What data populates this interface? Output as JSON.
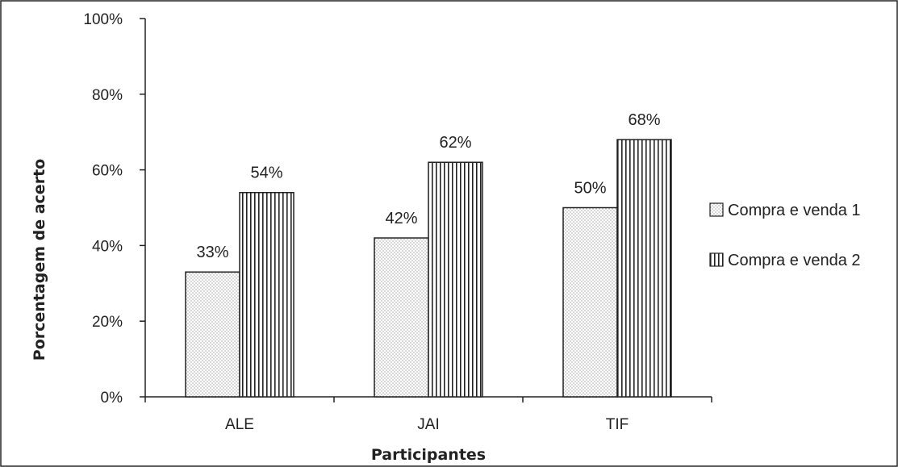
{
  "chart_data": {
    "type": "bar",
    "categories": [
      "ALE",
      "JAI",
      "TIF"
    ],
    "series": [
      {
        "name": "Compra e venda 1",
        "values": [
          33,
          42,
          50
        ],
        "pattern": "dots"
      },
      {
        "name": "Compra e venda 2",
        "values": [
          54,
          62,
          68
        ],
        "pattern": "vertical-lines"
      }
    ],
    "value_labels": [
      [
        "33%",
        "42%",
        "50%"
      ],
      [
        "54%",
        "62%",
        "68%"
      ]
    ],
    "xlabel": "Participantes",
    "ylabel": "Porcentagem de acerto",
    "ylim": [
      0,
      100
    ],
    "yticks": [
      "0%",
      "20%",
      "40%",
      "60%",
      "80%",
      "100%"
    ],
    "ytick_values": [
      0,
      20,
      40,
      60,
      80,
      100
    ],
    "grid": false,
    "legend_position": "right",
    "colors": {
      "bar_fill": "#ffffff",
      "stroke": "#222222"
    }
  }
}
